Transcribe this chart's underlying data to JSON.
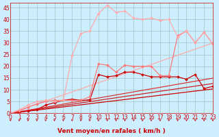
{
  "xlabel": "Vent moyen/en rafales ( km/h )",
  "bg_color": "#cceeff",
  "grid_color": "#aacccc",
  "x_values": [
    0,
    1,
    2,
    3,
    4,
    5,
    6,
    7,
    8,
    9,
    10,
    11,
    12,
    13,
    14,
    15,
    16,
    17,
    18,
    19,
    20,
    21,
    22,
    23
  ],
  "lines": [
    {
      "y": [
        0,
        0.45,
        0.9,
        1.35,
        1.8,
        2.25,
        2.7,
        3.15,
        3.6,
        4.05,
        4.5,
        4.95,
        5.4,
        5.85,
        6.3,
        6.75,
        7.2,
        7.65,
        8.1,
        8.55,
        9.0,
        9.45,
        9.9,
        10.35
      ],
      "color": "#cc0000",
      "lw": 0.9,
      "marker": null
    },
    {
      "y": [
        0,
        0.55,
        1.1,
        1.65,
        2.2,
        2.75,
        3.3,
        3.85,
        4.4,
        4.95,
        5.5,
        6.05,
        6.6,
        7.15,
        7.7,
        8.25,
        8.8,
        9.35,
        9.9,
        10.45,
        11.0,
        11.55,
        12.1,
        12.65
      ],
      "color": "#cc2222",
      "lw": 0.9,
      "marker": null
    },
    {
      "y": [
        0,
        0.65,
        1.3,
        1.95,
        2.6,
        3.25,
        3.9,
        4.55,
        5.2,
        5.85,
        6.5,
        7.15,
        7.8,
        8.45,
        9.1,
        9.75,
        10.4,
        11.05,
        11.7,
        12.35,
        13.0,
        13.65,
        14.3,
        14.95
      ],
      "color": "#dd3333",
      "lw": 0.9,
      "marker": null
    },
    {
      "y": [
        0,
        1.3,
        2.6,
        3.9,
        5.2,
        6.5,
        7.8,
        9.1,
        10.4,
        11.7,
        13.0,
        14.3,
        15.6,
        16.9,
        18.2,
        19.5,
        20.8,
        22.1,
        23.4,
        24.7,
        26.0,
        27.3,
        28.6,
        29.9
      ],
      "color": "#ffaaaa",
      "lw": 0.9,
      "marker": null
    },
    {
      "y": [
        0,
        0.5,
        1.0,
        1.5,
        3.5,
        4.5,
        5.5,
        6.0,
        5.5,
        5.5,
        16.5,
        15.5,
        16.0,
        17.5,
        17.5,
        16.5,
        15.5,
        15.5,
        15.5,
        15.5,
        14.5,
        16.5,
        10.5,
        11.5
      ],
      "color": "#cc0000",
      "lw": 0.9,
      "marker": "D",
      "ms": 2.0
    },
    {
      "y": [
        0,
        1.0,
        2.5,
        4.0,
        5.0,
        5.5,
        5.5,
        5.5,
        5.5,
        7.0,
        21.0,
        20.5,
        17.5,
        20.5,
        20.0,
        20.0,
        20.0,
        16.0,
        16.0,
        33.0,
        35.0,
        30.0,
        34.5,
        29.5
      ],
      "color": "#ff7777",
      "lw": 0.9,
      "marker": "D",
      "ms": 2.0
    },
    {
      "y": [
        0,
        1.5,
        3.5,
        5.0,
        5.5,
        5.0,
        5.5,
        24.5,
        34.0,
        35.0,
        42.5,
        46.0,
        43.0,
        43.5,
        40.5,
        40.0,
        40.5,
        39.5,
        40.0,
        32.5,
        35.0,
        30.0,
        34.5,
        29.5
      ],
      "color": "#ffaaaa",
      "lw": 0.9,
      "marker": "D",
      "ms": 2.0
    }
  ],
  "wind_symbols": [
    0,
    1,
    2,
    3,
    4,
    5,
    6,
    7,
    8,
    9,
    10,
    11,
    12,
    13,
    14,
    15,
    16,
    17,
    18,
    19,
    20,
    21,
    22,
    23
  ],
  "xlim": [
    0,
    23
  ],
  "ylim": [
    0,
    47
  ],
  "yticks": [
    0,
    5,
    10,
    15,
    20,
    25,
    30,
    35,
    40,
    45
  ],
  "xticks": [
    0,
    1,
    2,
    3,
    4,
    5,
    6,
    7,
    8,
    9,
    10,
    11,
    12,
    13,
    14,
    15,
    16,
    17,
    18,
    19,
    20,
    21,
    22,
    23
  ],
  "tick_fontsize": 5.5,
  "xlabel_fontsize": 6.5,
  "tick_color": "#cc0000",
  "spine_color": "#cc0000"
}
